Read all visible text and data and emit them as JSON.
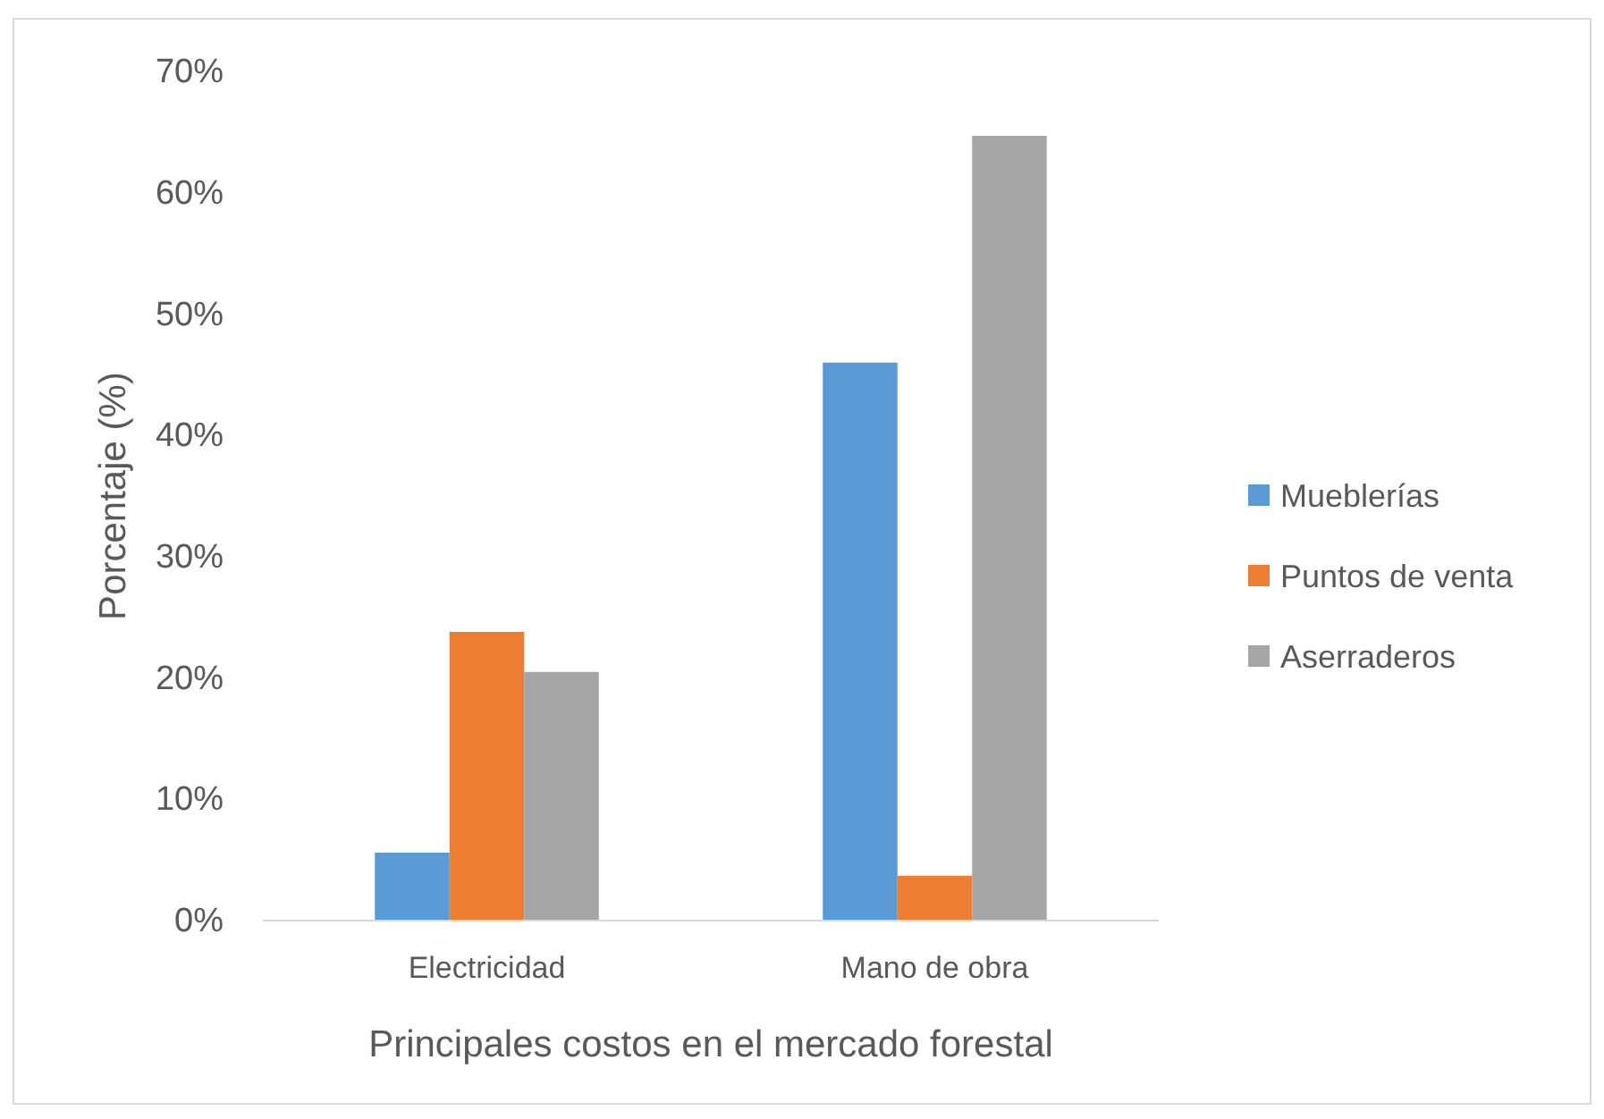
{
  "chart_data": {
    "type": "bar",
    "xlabel": "Principales costos en el mercado forestal",
    "ylabel": "Porcentaje (%)",
    "categories": [
      "Electricidad",
      "Mano de obra"
    ],
    "series": [
      {
        "name": "Mueblerías",
        "color": "#5b9bd5",
        "values": [
          5.6,
          46.0
        ]
      },
      {
        "name": "Puntos de venta",
        "color": "#ed7d31",
        "values": [
          23.8,
          3.7
        ]
      },
      {
        "name": "Aserraderos",
        "color": "#a5a5a5",
        "values": [
          20.5,
          64.7
        ]
      }
    ],
    "ylim": [
      0,
      70
    ],
    "yticks": [
      {
        "value": 0,
        "label": "0%"
      },
      {
        "value": 10,
        "label": "10%"
      },
      {
        "value": 20,
        "label": "20%"
      },
      {
        "value": 30,
        "label": "30%"
      },
      {
        "value": 40,
        "label": "40%"
      },
      {
        "value": 50,
        "label": "50%"
      },
      {
        "value": 60,
        "label": "60%"
      },
      {
        "value": 70,
        "label": "70%"
      }
    ],
    "grid": false,
    "legend": "right"
  }
}
